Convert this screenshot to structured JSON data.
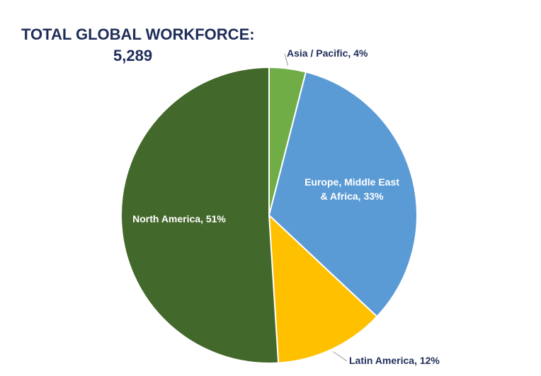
{
  "chart_data": {
    "type": "pie",
    "title": "TOTAL GLOBAL WORKFORCE:",
    "subtitle": "5,289",
    "values": [
      4,
      33,
      12,
      51
    ],
    "value_labels": [
      "Asia / Pacific, 4%",
      "Europe, Middle East & Africa, 33%",
      "Latin America, 12%",
      "North America, 51%"
    ],
    "colors": [
      "#70ad47",
      "#5b9bd5",
      "#ffc000",
      "#43682b"
    ]
  }
}
